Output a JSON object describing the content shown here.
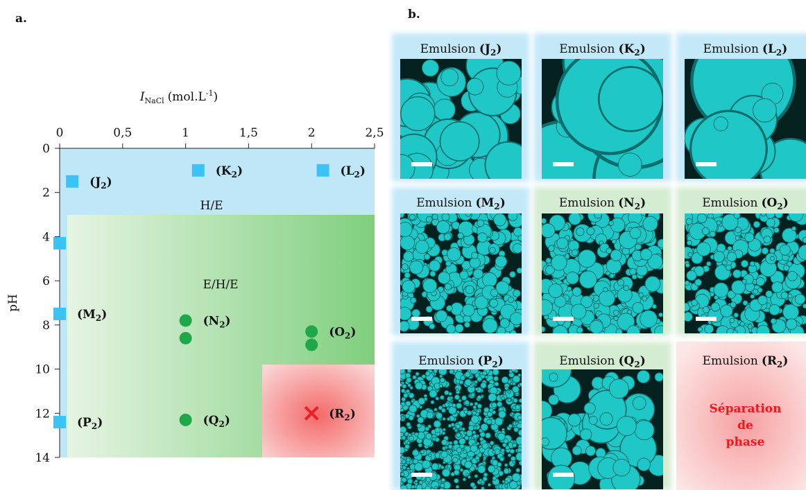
{
  "chart_data": {
    "type": "scatter",
    "panel_label": "a.",
    "x_label": {
      "symbol": "I",
      "subscript": "NaCl",
      "unit": "(mol.L",
      "superscript": "-1",
      "close": ")"
    },
    "y_label": "pH",
    "xlim": [
      0,
      2.5
    ],
    "xticks": [
      0,
      {
        "value": 0.5,
        "label": "0,5"
      },
      1,
      {
        "value": 1.5,
        "label": "1,5"
      },
      2,
      {
        "value": 2.5,
        "label": "2,5"
      }
    ],
    "ylim": [
      0,
      14
    ],
    "yticks": [
      0,
      2,
      4,
      6,
      8,
      10,
      12,
      14
    ],
    "y_inverted": true,
    "regions": [
      "H/E",
      "E/H/E"
    ],
    "label_open": "(",
    "label_close": ")",
    "series": [
      {
        "marker": "square",
        "color": "#3cc3f5",
        "x": [
          0.1,
          1.1,
          2.09,
          0,
          0,
          0
        ],
        "y": [
          1.5,
          1,
          1,
          4.3,
          7.5,
          12.4
        ],
        "labels": [
          {
            "letter": "J",
            "sub": "2"
          },
          {
            "letter": "K",
            "sub": "2"
          },
          {
            "letter": "L",
            "sub": "2"
          },
          null,
          {
            "letter": "M",
            "sub": "2"
          },
          {
            "letter": "P",
            "sub": "2"
          }
        ]
      },
      {
        "marker": "circle",
        "color": "#1fa84a",
        "x": [
          1,
          1,
          1,
          2,
          2
        ],
        "y": [
          7.8,
          8.6,
          12.3,
          8.3,
          8.9
        ],
        "labels": [
          {
            "letter": "N",
            "sub": "2"
          },
          null,
          {
            "letter": "Q",
            "sub": "2"
          },
          {
            "letter": "O",
            "sub": "2"
          },
          null
        ]
      },
      {
        "marker": "cross",
        "color": "#e8202a",
        "x": [
          2
        ],
        "y": [
          12
        ],
        "labels": [
          {
            "letter": "R",
            "sub": "2"
          }
        ]
      }
    ]
  },
  "panel_b": {
    "label": "b.",
    "tiles": [
      {
        "title": "Emulsion",
        "letter": "J",
        "sub": "2",
        "background": "blue"
      },
      {
        "title": "Emulsion",
        "letter": "K",
        "sub": "2",
        "background": "blue"
      },
      {
        "title": "Emulsion",
        "letter": "L",
        "sub": "2",
        "background": "blue"
      },
      {
        "title": "Emulsion",
        "letter": "M",
        "sub": "2",
        "background": "blue"
      },
      {
        "title": "Emulsion",
        "letter": "N",
        "sub": "2",
        "background": "green"
      },
      {
        "title": "Emulsion",
        "letter": "O",
        "sub": "2",
        "background": "green"
      },
      {
        "title": "Emulsion",
        "letter": "P",
        "sub": "2",
        "background": "blue"
      },
      {
        "title": "Emulsion",
        "letter": "Q",
        "sub": "2",
        "background": "green"
      },
      {
        "title": "Emulsion",
        "letter": "R",
        "sub": "2",
        "background": "red",
        "text": [
          "Séparation",
          "de",
          "phase"
        ]
      }
    ]
  }
}
